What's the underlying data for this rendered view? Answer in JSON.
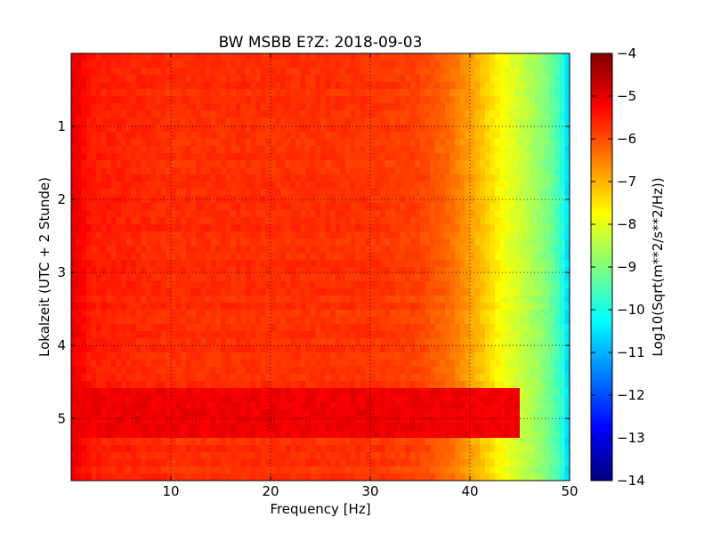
{
  "chart_data": {
    "type": "heatmap",
    "title": "BW MSBB E?Z: 2018-09-03",
    "xlabel": "Frequency [Hz]",
    "ylabel": "Lokalzeit (UTC + 2 Stunde)",
    "xlim": [
      0,
      50
    ],
    "ylim": [
      5.85,
      0
    ],
    "x_ticks": [
      10,
      20,
      30,
      40,
      50
    ],
    "y_ticks": [
      1,
      2,
      3,
      4,
      5
    ],
    "grid": true,
    "colormap": "jet",
    "colorbar": {
      "label": "Log10(Sqrt(m**2/s**2/Hz))",
      "range": [
        -14,
        -4
      ],
      "ticks": [
        -4,
        -5,
        -6,
        -7,
        -8,
        -9,
        -10,
        -11,
        -12,
        -13,
        -14
      ]
    },
    "spectrum_profile": [
      {
        "freq": 0,
        "log_amp": -5.0
      },
      {
        "freq": 2,
        "log_amp": -5.5
      },
      {
        "freq": 10,
        "log_amp": -5.7
      },
      {
        "freq": 20,
        "log_amp": -5.7
      },
      {
        "freq": 30,
        "log_amp": -5.75
      },
      {
        "freq": 35,
        "log_amp": -5.9
      },
      {
        "freq": 38,
        "log_amp": -6.3
      },
      {
        "freq": 40,
        "log_amp": -6.8
      },
      {
        "freq": 42,
        "log_amp": -7.4
      },
      {
        "freq": 44,
        "log_amp": -8.0
      },
      {
        "freq": 46,
        "log_amp": -8.5
      },
      {
        "freq": 48,
        "log_amp": -9.1
      },
      {
        "freq": 49.5,
        "log_amp": -10.0
      },
      {
        "freq": 50,
        "log_amp": -11.0
      }
    ],
    "high_energy_band": {
      "time_range": [
        4.6,
        5.3
      ],
      "freq_range": [
        0,
        45
      ],
      "log_amp": -5.1
    }
  }
}
